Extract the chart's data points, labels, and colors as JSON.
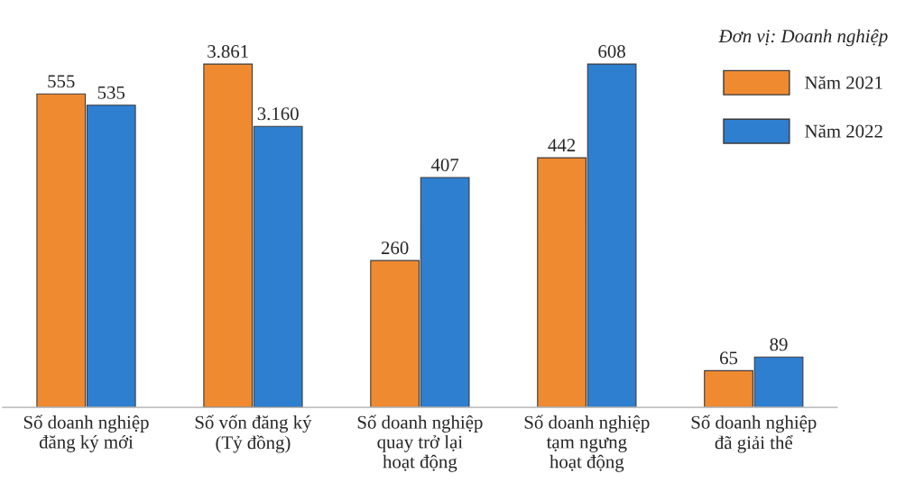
{
  "chart_data": {
    "type": "bar",
    "categories": [
      "Số doanh nghiệp\nđăng ký mới",
      "Số vốn đăng ký\n(Tỷ đồng)",
      "Số doanh nghiệp\nquay trở lại\nhoạt động",
      "Số doanh nghiệp\ntạm ngưng\nhoạt động",
      "Số doanh nghiệp\nđã giải thể"
    ],
    "series": [
      {
        "name": "Năm 2021",
        "color": "#f08a30",
        "values": [
          555,
          null,
          260,
          442,
          65
        ],
        "value_labels": [
          "555",
          null,
          "260",
          "442",
          "65"
        ]
      },
      {
        "name": "Năm 2022",
        "color": "#2e7fd0",
        "values": [
          535,
          null,
          407,
          608,
          89
        ],
        "value_labels": [
          "535",
          null,
          "407",
          "608",
          "89"
        ]
      },
      {
        "color": "#f08a30",
        "axis": "y2",
        "values": [
          null,
          3861,
          null,
          null,
          null
        ],
        "value_labels": [
          null,
          "3.861",
          null,
          null,
          null
        ]
      },
      {
        "color": "#2e7fd0",
        "axis": "y2",
        "values": [
          null,
          3160,
          null,
          null,
          null
        ],
        "value_labels": [
          null,
          "3.160",
          null,
          null,
          null
        ]
      }
    ],
    "legend_title": "Đơn vị: Doanh nghiệp",
    "legend": "top right",
    "tick_labels": "x"
  }
}
